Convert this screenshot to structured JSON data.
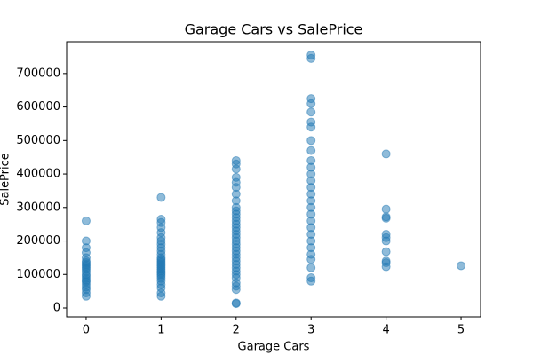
{
  "chart_data": {
    "type": "scatter",
    "title": "Garage Cars vs SalePrice",
    "xlabel": "Garage Cars",
    "ylabel": "SalePrice",
    "x": [
      0,
      0,
      0,
      0,
      0,
      0,
      0,
      0,
      0,
      0,
      0,
      0,
      0,
      0,
      0,
      0,
      0,
      0,
      0,
      0,
      0,
      0,
      1,
      1,
      1,
      1,
      1,
      1,
      1,
      1,
      1,
      1,
      1,
      1,
      1,
      1,
      1,
      1,
      1,
      1,
      1,
      1,
      1,
      1,
      1,
      1,
      1,
      1,
      1,
      1,
      1,
      2,
      2,
      2,
      2,
      2,
      2,
      2,
      2,
      2,
      2,
      2,
      2,
      2,
      2,
      2,
      2,
      2,
      2,
      2,
      2,
      2,
      2,
      2,
      2,
      2,
      2,
      2,
      2,
      2,
      2,
      2,
      2,
      2,
      2,
      2,
      3,
      3,
      3,
      3,
      3,
      3,
      3,
      3,
      3,
      3,
      3,
      3,
      3,
      3,
      3,
      3,
      3,
      3,
      3,
      3,
      3,
      3,
      3,
      3,
      3,
      3,
      3,
      3,
      4,
      4,
      4,
      4,
      4,
      4,
      4,
      4,
      4,
      4,
      4,
      5
    ],
    "values": [
      35000,
      45000,
      55000,
      62000,
      70000,
      78000,
      82000,
      88000,
      95000,
      100000,
      108000,
      115000,
      120000,
      125000,
      130000,
      135000,
      140000,
      150000,
      165000,
      180000,
      200000,
      260000,
      35000,
      45000,
      60000,
      70000,
      80000,
      88000,
      95000,
      100000,
      105000,
      110000,
      115000,
      120000,
      125000,
      130000,
      135000,
      140000,
      145000,
      150000,
      160000,
      170000,
      180000,
      190000,
      200000,
      210000,
      225000,
      240000,
      255000,
      265000,
      330000,
      13000,
      15000,
      55000,
      65000,
      75000,
      90000,
      100000,
      110000,
      120000,
      130000,
      140000,
      150000,
      160000,
      170000,
      180000,
      190000,
      200000,
      210000,
      220000,
      230000,
      240000,
      250000,
      260000,
      270000,
      280000,
      290000,
      300000,
      320000,
      340000,
      360000,
      375000,
      390000,
      415000,
      430000,
      440000,
      80000,
      90000,
      120000,
      145000,
      160000,
      180000,
      200000,
      220000,
      240000,
      260000,
      280000,
      300000,
      320000,
      340000,
      360000,
      380000,
      400000,
      420000,
      440000,
      470000,
      500000,
      540000,
      555000,
      585000,
      610000,
      625000,
      745000,
      755000,
      123000,
      135000,
      140000,
      168000,
      200000,
      210000,
      220000,
      268000,
      272000,
      295000,
      460000,
      126000
    ],
    "color": "#1f77b4",
    "alpha": 0.5,
    "xlim": [
      -0.26,
      5.26
    ],
    "xticks": [
      0,
      1,
      2,
      3,
      4,
      5
    ],
    "ylim": [
      -26500,
      795000
    ],
    "yticks": [
      0,
      100000,
      200000,
      300000,
      400000,
      500000,
      600000,
      700000
    ]
  }
}
